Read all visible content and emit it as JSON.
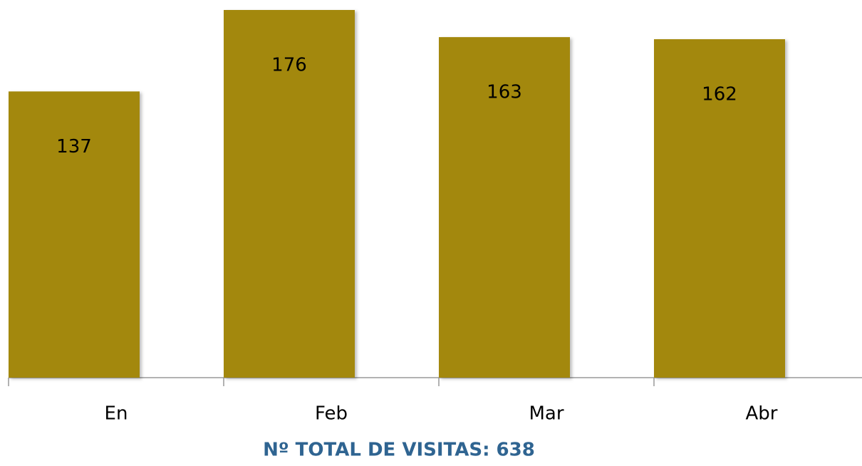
{
  "chart_data": {
    "type": "bar",
    "categories": [
      "En",
      "Feb",
      "Mar",
      "Abr"
    ],
    "values": [
      137,
      176,
      163,
      162
    ],
    "color": "#a38807",
    "footer": "Nº TOTAL DE VISITAS: 638"
  }
}
